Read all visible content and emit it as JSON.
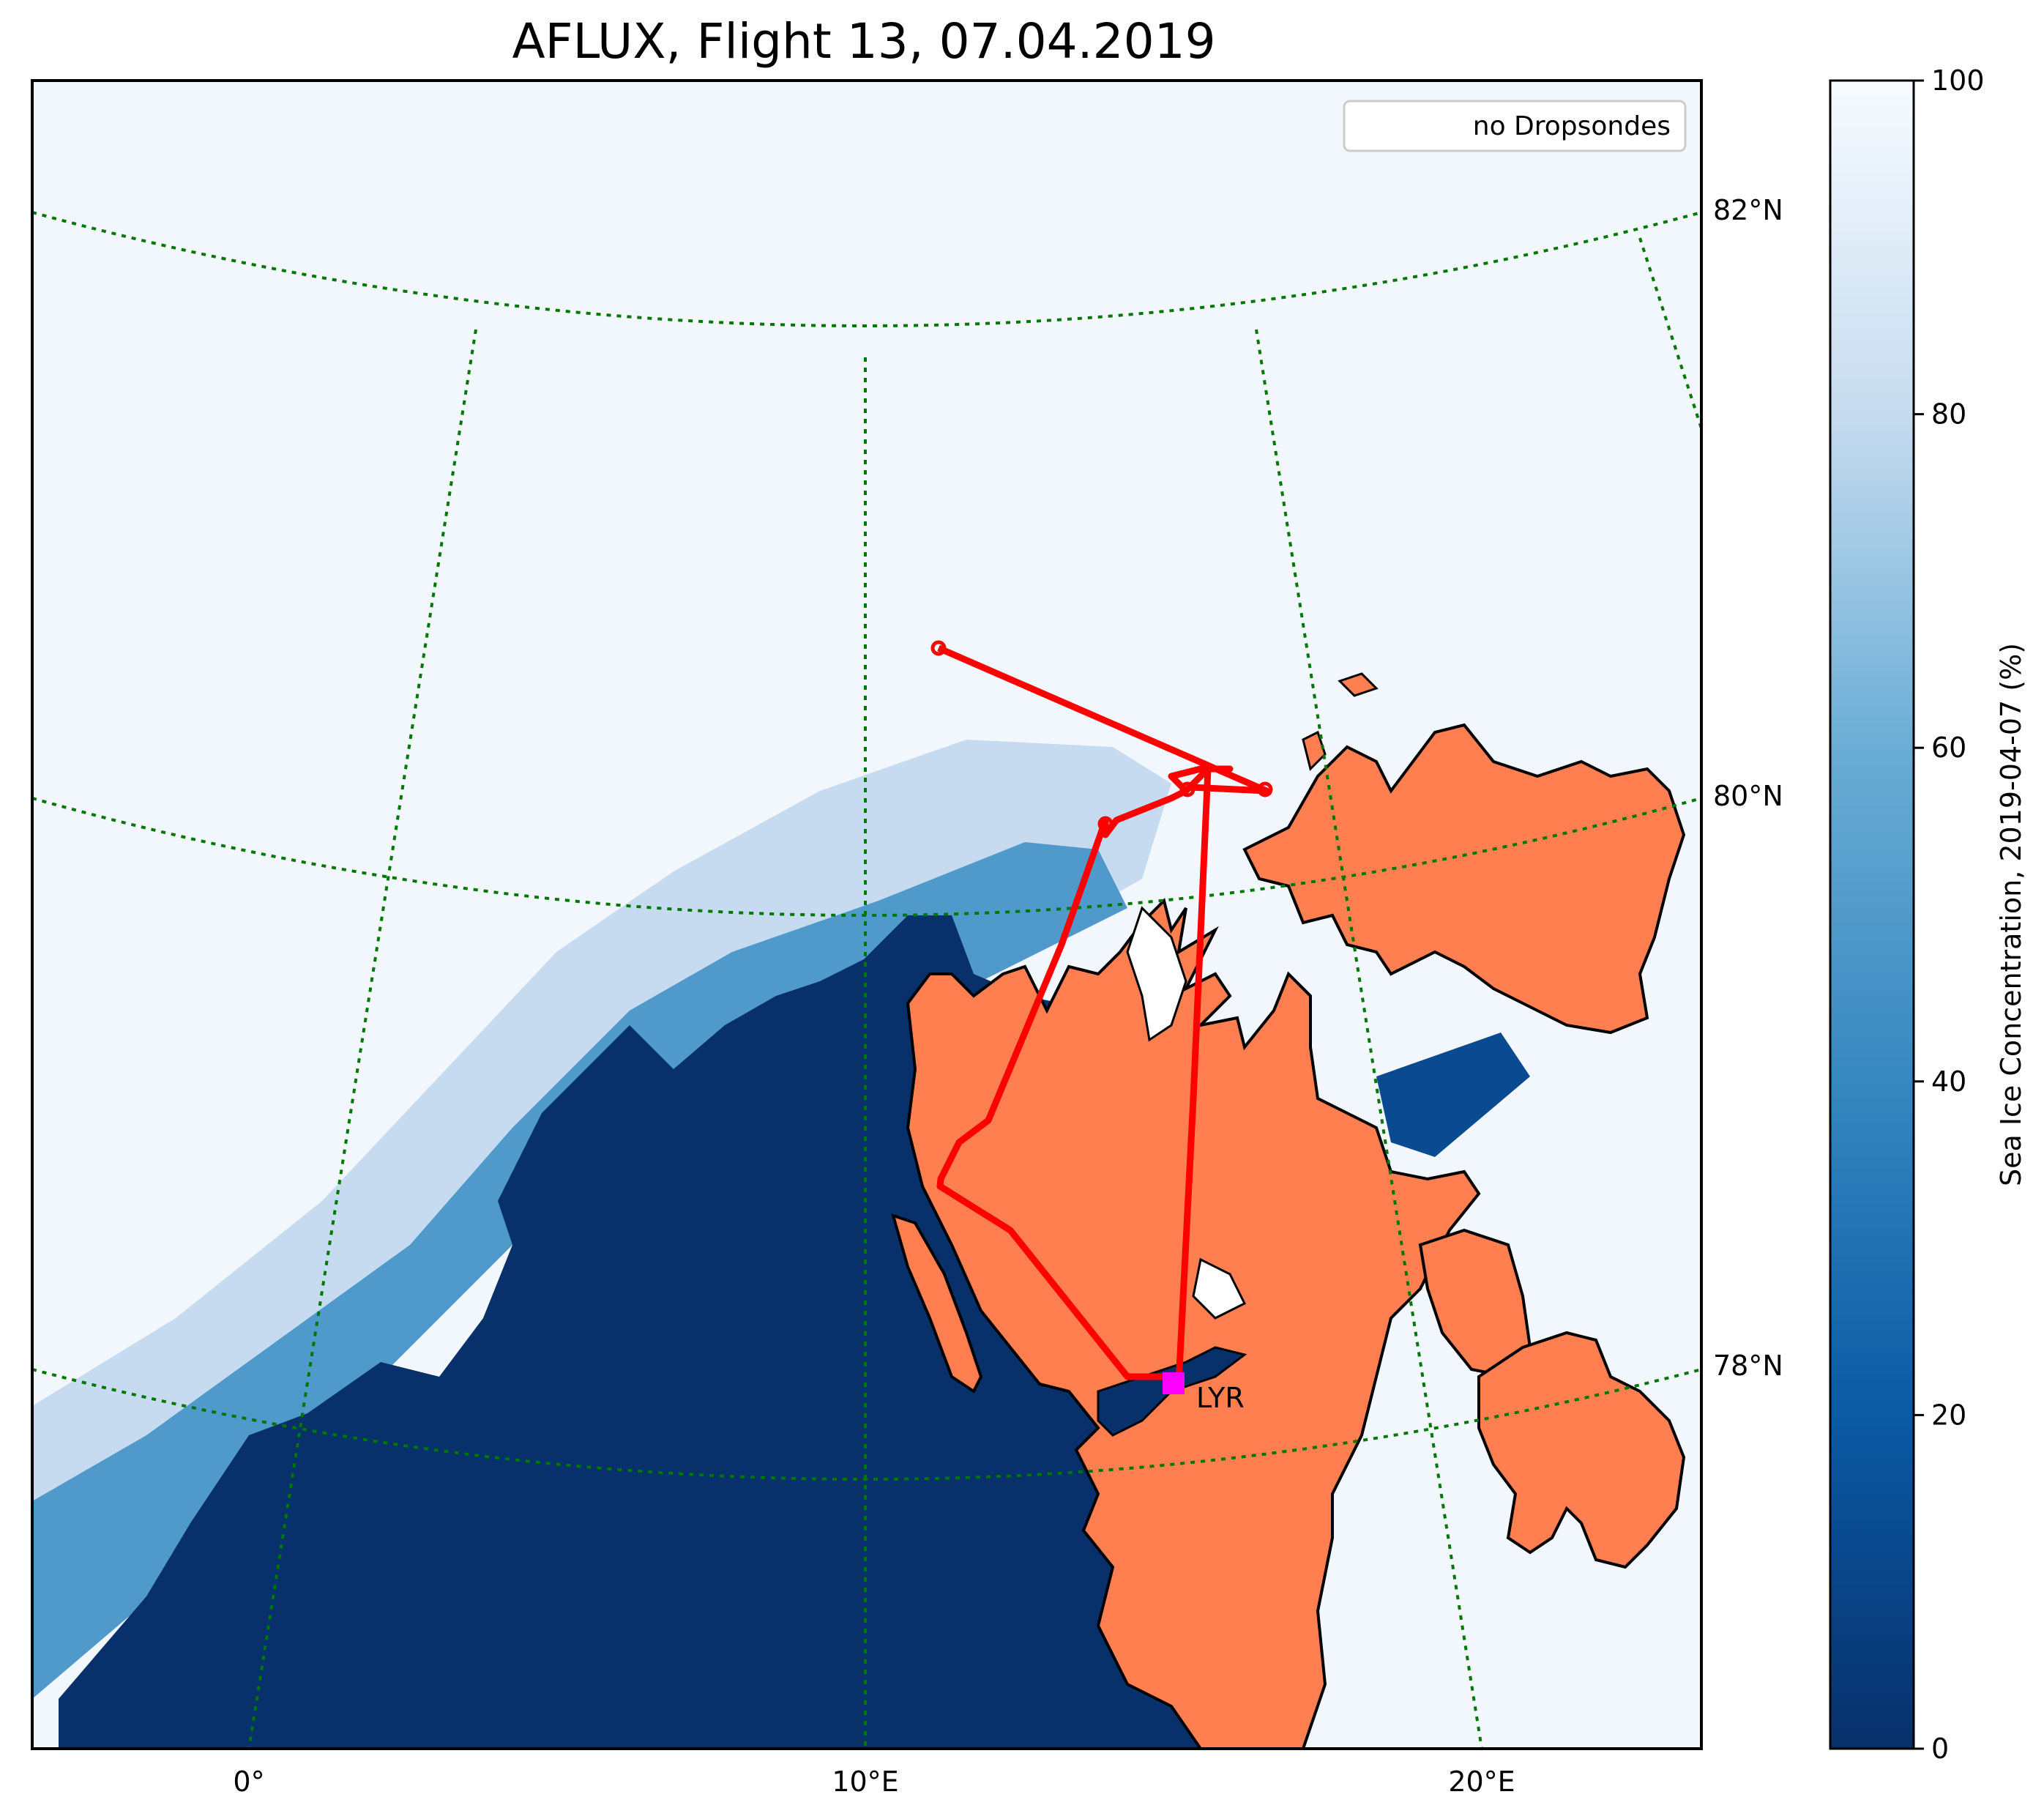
{
  "title": "AFLUX, Flight 13, 07.04.2019",
  "legend": {
    "entry": "no Dropsondes",
    "placement": "top-right"
  },
  "place_label": {
    "name": "LYR",
    "marker_color": "#ff00ff"
  },
  "meridian_labels": [
    "0°",
    "10°E",
    "20°E"
  ],
  "parallel_labels": [
    "82°N",
    "80°N",
    "78°N"
  ],
  "colorbar": {
    "label": "Sea Ice Concentration, 2019-04-07 (%)",
    "ticks": [
      "0",
      "20",
      "40",
      "60",
      "80",
      "100"
    ],
    "range": [
      0,
      100
    ],
    "colormap": "Blues_r"
  },
  "colors": {
    "land": "#ff7f50",
    "open_water": "#08306b",
    "track": "#ff0000",
    "graticule": "#007700"
  }
}
